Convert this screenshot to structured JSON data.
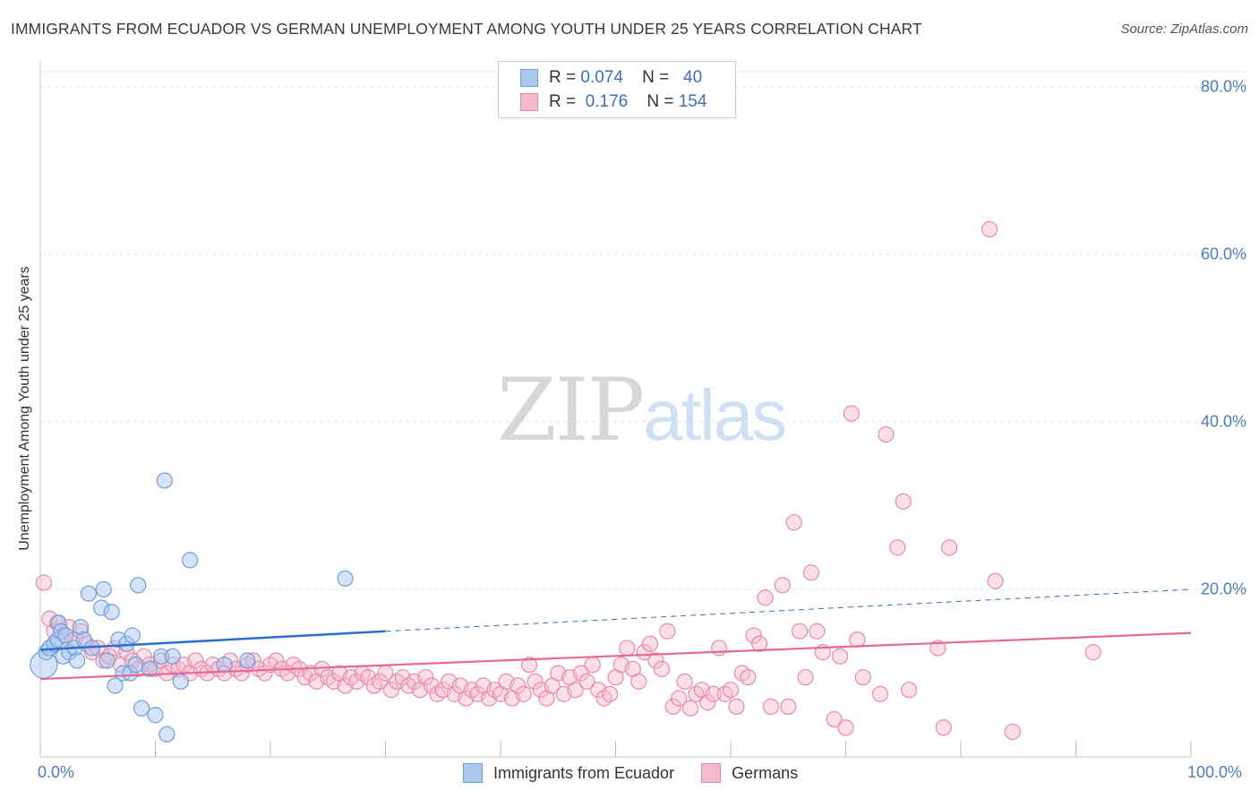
{
  "title": "IMMIGRANTS FROM ECUADOR VS GERMAN UNEMPLOYMENT AMONG YOUTH UNDER 25 YEARS CORRELATION CHART",
  "source": "Source: ZipAtlas.com",
  "watermark": {
    "zip": "ZIP",
    "atlas": "atlas"
  },
  "legend": {
    "rows": [
      {
        "r_label": "R =",
        "r_value": "0.074",
        "n_label": "N =",
        "n_value": "40"
      },
      {
        "r_label": "R =",
        "r_value": "0.176",
        "n_label": "N =",
        "n_value": "154"
      }
    ]
  },
  "colors": {
    "series1_fill": "#aac8f0",
    "series1_stroke": "#6f9ed8",
    "series1_line": "#2a6fcc",
    "series2_fill": "#f6b8cc",
    "series2_stroke": "#e88aa8",
    "series2_line": "#e26a94",
    "grid": "#e2e2e2",
    "tick_text": "#4a7dc8"
  },
  "chart_data": {
    "type": "scatter",
    "title": "IMMIGRANTS FROM ECUADOR VS GERMAN UNEMPLOYMENT AMONG YOUTH UNDER 25 YEARS CORRELATION CHART",
    "xlabel": "",
    "ylabel": "Unemployment Among Youth under 25 years",
    "xlim": [
      0,
      100
    ],
    "ylim": [
      0,
      80
    ],
    "x_tick_labels": [
      "0.0%",
      "100.0%"
    ],
    "y_ticks": [
      20,
      40,
      60,
      80
    ],
    "y_tick_labels": [
      "20.0%",
      "40.0%",
      "60.0%",
      "80.0%"
    ],
    "grid": true,
    "legend_position": "bottom",
    "series": [
      {
        "name": "Immigrants from Ecuador",
        "trend": {
          "x": [
            0,
            30
          ],
          "y": [
            12.8,
            15.0
          ],
          "dashed_to": [
            100,
            20.0
          ]
        },
        "points": [
          [
            0.3,
            11.0
          ],
          [
            0.5,
            12.5
          ],
          [
            0.8,
            13.0
          ],
          [
            1.2,
            13.5
          ],
          [
            1.5,
            14.0
          ],
          [
            1.6,
            16.0
          ],
          [
            1.8,
            15.0
          ],
          [
            2.0,
            12.0
          ],
          [
            2.2,
            14.5
          ],
          [
            2.5,
            12.5
          ],
          [
            3.0,
            13.0
          ],
          [
            3.2,
            11.5
          ],
          [
            3.5,
            15.5
          ],
          [
            3.8,
            14.0
          ],
          [
            4.2,
            19.5
          ],
          [
            4.5,
            13.0
          ],
          [
            5.3,
            17.8
          ],
          [
            5.5,
            20.0
          ],
          [
            5.8,
            11.5
          ],
          [
            6.2,
            17.3
          ],
          [
            6.5,
            8.5
          ],
          [
            6.8,
            14.0
          ],
          [
            7.2,
            10.0
          ],
          [
            7.5,
            13.5
          ],
          [
            7.8,
            10.0
          ],
          [
            8.0,
            14.5
          ],
          [
            8.3,
            11.0
          ],
          [
            8.5,
            20.5
          ],
          [
            8.8,
            5.8
          ],
          [
            9.5,
            10.5
          ],
          [
            10.0,
            5.0
          ],
          [
            10.5,
            12.0
          ],
          [
            10.8,
            33.0
          ],
          [
            11.0,
            2.7
          ],
          [
            11.5,
            12.0
          ],
          [
            12.2,
            9.0
          ],
          [
            13.0,
            23.5
          ],
          [
            16.0,
            11.0
          ],
          [
            18.0,
            11.5
          ],
          [
            26.5,
            21.3
          ]
        ]
      },
      {
        "name": "Germans",
        "trend": {
          "x": [
            0,
            100
          ],
          "y": [
            9.3,
            14.8
          ]
        },
        "points": [
          [
            0.3,
            20.8
          ],
          [
            0.8,
            16.5
          ],
          [
            1.2,
            15.0
          ],
          [
            1.5,
            16.0
          ],
          [
            2.0,
            14.5
          ],
          [
            2.5,
            15.5
          ],
          [
            3.0,
            14.0
          ],
          [
            3.5,
            15.0
          ],
          [
            4.0,
            13.5
          ],
          [
            4.5,
            12.5
          ],
          [
            5.0,
            13.0
          ],
          [
            5.5,
            11.5
          ],
          [
            6.0,
            12.0
          ],
          [
            6.5,
            13.0
          ],
          [
            7.0,
            11.0
          ],
          [
            7.5,
            12.5
          ],
          [
            8.0,
            11.5
          ],
          [
            8.5,
            10.5
          ],
          [
            9.0,
            12.0
          ],
          [
            9.5,
            11.0
          ],
          [
            10.0,
            10.5
          ],
          [
            10.5,
            11.5
          ],
          [
            11.0,
            10.0
          ],
          [
            11.5,
            11.0
          ],
          [
            12.0,
            10.5
          ],
          [
            12.5,
            11.0
          ],
          [
            13.0,
            10.0
          ],
          [
            13.5,
            11.5
          ],
          [
            14.0,
            10.5
          ],
          [
            14.5,
            10.0
          ],
          [
            15.0,
            11.0
          ],
          [
            15.5,
            10.5
          ],
          [
            16.0,
            10.0
          ],
          [
            16.5,
            11.5
          ],
          [
            17.0,
            10.5
          ],
          [
            17.5,
            10.0
          ],
          [
            18.0,
            11.0
          ],
          [
            18.5,
            11.5
          ],
          [
            19.0,
            10.5
          ],
          [
            19.5,
            10.0
          ],
          [
            20.0,
            11.0
          ],
          [
            20.5,
            11.5
          ],
          [
            21.0,
            10.5
          ],
          [
            21.5,
            10.0
          ],
          [
            22.0,
            11.0
          ],
          [
            22.5,
            10.5
          ],
          [
            23.0,
            9.5
          ],
          [
            23.5,
            10.0
          ],
          [
            24.0,
            9.0
          ],
          [
            24.5,
            10.5
          ],
          [
            25.0,
            9.5
          ],
          [
            25.5,
            9.0
          ],
          [
            26.0,
            10.0
          ],
          [
            26.5,
            8.5
          ],
          [
            27.0,
            9.5
          ],
          [
            27.5,
            9.0
          ],
          [
            28.0,
            10.0
          ],
          [
            28.5,
            9.5
          ],
          [
            29.0,
            8.5
          ],
          [
            29.5,
            9.0
          ],
          [
            30.0,
            10.0
          ],
          [
            30.5,
            8.0
          ],
          [
            31.0,
            9.0
          ],
          [
            31.5,
            9.5
          ],
          [
            32.0,
            8.5
          ],
          [
            32.5,
            9.0
          ],
          [
            33.0,
            8.0
          ],
          [
            33.5,
            9.5
          ],
          [
            34.0,
            8.5
          ],
          [
            34.5,
            7.5
          ],
          [
            35.0,
            8.0
          ],
          [
            35.5,
            9.0
          ],
          [
            36.0,
            7.5
          ],
          [
            36.5,
            8.5
          ],
          [
            37.0,
            7.0
          ],
          [
            37.5,
            8.0
          ],
          [
            38.0,
            7.5
          ],
          [
            38.5,
            8.5
          ],
          [
            39.0,
            7.0
          ],
          [
            39.5,
            8.0
          ],
          [
            40.0,
            7.5
          ],
          [
            40.5,
            9.0
          ],
          [
            41.0,
            7.0
          ],
          [
            41.5,
            8.5
          ],
          [
            42.0,
            7.5
          ],
          [
            42.5,
            11.0
          ],
          [
            43.0,
            9.0
          ],
          [
            43.5,
            8.0
          ],
          [
            44.0,
            7.0
          ],
          [
            44.5,
            8.5
          ],
          [
            45.0,
            10.0
          ],
          [
            45.5,
            7.5
          ],
          [
            46.0,
            9.5
          ],
          [
            46.5,
            8.0
          ],
          [
            47.0,
            10.0
          ],
          [
            47.5,
            9.0
          ],
          [
            48.0,
            11.0
          ],
          [
            48.5,
            8.0
          ],
          [
            49.0,
            7.0
          ],
          [
            49.5,
            7.5
          ],
          [
            50.0,
            9.5
          ],
          [
            50.5,
            11.0
          ],
          [
            51.0,
            13.0
          ],
          [
            51.5,
            10.5
          ],
          [
            52.0,
            9.0
          ],
          [
            52.5,
            12.5
          ],
          [
            53.0,
            13.5
          ],
          [
            53.5,
            11.5
          ],
          [
            54.0,
            10.5
          ],
          [
            54.5,
            15.0
          ],
          [
            55.0,
            6.0
          ],
          [
            55.5,
            7.0
          ],
          [
            56.0,
            9.0
          ],
          [
            56.5,
            5.8
          ],
          [
            57.0,
            7.5
          ],
          [
            57.5,
            8.0
          ],
          [
            58.0,
            6.5
          ],
          [
            58.5,
            7.5
          ],
          [
            59.0,
            13.0
          ],
          [
            59.5,
            7.5
          ],
          [
            60.0,
            8.0
          ],
          [
            60.5,
            6.0
          ],
          [
            61.0,
            10.0
          ],
          [
            61.5,
            9.5
          ],
          [
            62.0,
            14.5
          ],
          [
            62.5,
            13.5
          ],
          [
            63.0,
            19.0
          ],
          [
            63.5,
            6.0
          ],
          [
            64.5,
            20.5
          ],
          [
            65.0,
            6.0
          ],
          [
            65.5,
            28.0
          ],
          [
            66.0,
            15.0
          ],
          [
            66.5,
            9.5
          ],
          [
            67.0,
            22.0
          ],
          [
            67.5,
            15.0
          ],
          [
            68.0,
            12.5
          ],
          [
            69.0,
            4.5
          ],
          [
            69.5,
            12.0
          ],
          [
            70.0,
            3.5
          ],
          [
            70.5,
            41.0
          ],
          [
            71.0,
            14.0
          ],
          [
            71.5,
            9.5
          ],
          [
            73.0,
            7.5
          ],
          [
            73.5,
            38.5
          ],
          [
            74.5,
            25.0
          ],
          [
            75.0,
            30.5
          ],
          [
            75.5,
            8.0
          ],
          [
            78.0,
            13.0
          ],
          [
            78.5,
            3.5
          ],
          [
            79.0,
            25.0
          ],
          [
            82.5,
            63.0
          ],
          [
            83.0,
            21.0
          ],
          [
            84.5,
            3.0
          ],
          [
            91.5,
            12.5
          ]
        ]
      }
    ]
  }
}
